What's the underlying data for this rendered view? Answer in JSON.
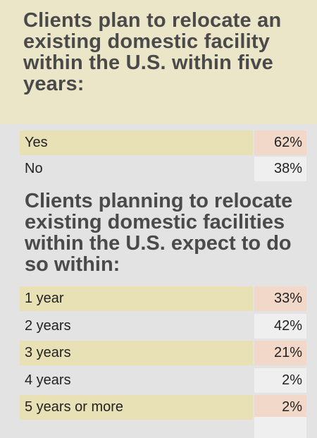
{
  "chart_data": [
    {
      "type": "table",
      "title": "Clients plan to relocate an existing domestic facility within the U.S. within five years:",
      "categories": [
        "Yes",
        "No"
      ],
      "values": [
        62,
        38
      ],
      "value_labels": [
        "62%",
        "38%"
      ]
    },
    {
      "type": "table",
      "title": "Clients planning to relocate existing domestic facilities within the U.S. expect to do so within:",
      "categories": [
        "1 year",
        "2 years",
        "3 years",
        "4 years",
        "5 years or more"
      ],
      "values": [
        33,
        42,
        21,
        2,
        2
      ],
      "value_labels": [
        "33%",
        "42%",
        "21%",
        "2%",
        "2%"
      ]
    }
  ],
  "colors": {
    "header_bg": "#ebe6c8",
    "panel_bg": "#e3e3e4",
    "highlight_label": "#e9e1b6",
    "highlight_value": "#f2d8c9",
    "plain_value": "#efefef"
  }
}
